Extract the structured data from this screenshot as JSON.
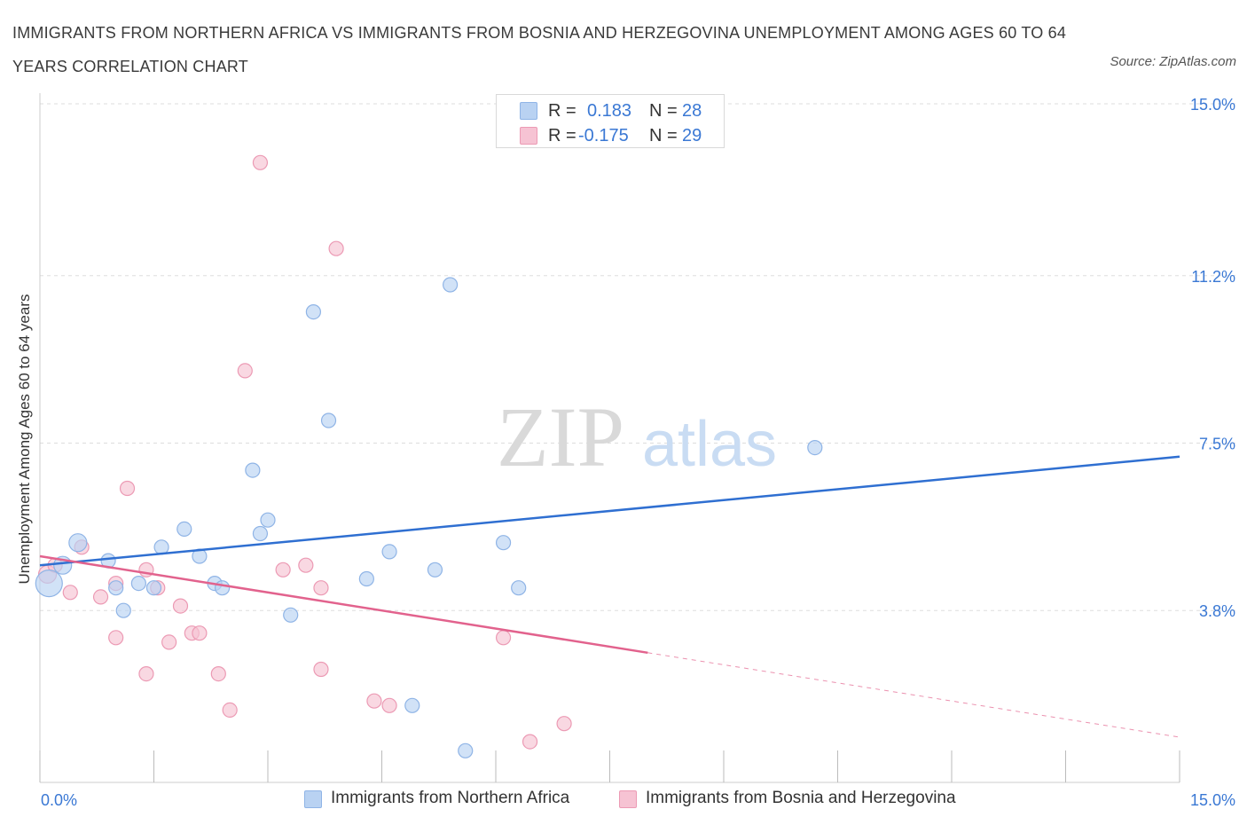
{
  "title": "IMMIGRANTS FROM NORTHERN AFRICA VS IMMIGRANTS FROM BOSNIA AND HERZEGOVINA UNEMPLOYMENT AMONG AGES 60 TO 64 YEARS CORRELATION CHART",
  "source": "Source: ZipAtlas.com",
  "watermark": {
    "zip": "ZIP",
    "atlas": "atlas"
  },
  "legend": {
    "rows": [
      {
        "r_label": "R =",
        "r_value": "0.183",
        "n_label": "N =",
        "n_value": "28"
      },
      {
        "r_label": "R =",
        "r_value": "-0.175",
        "n_label": "N =",
        "n_value": "29"
      }
    ]
  },
  "colors": {
    "blue_fill": "#b9d2f2",
    "blue_stroke": "#8fb4e6",
    "blue_line": "#2f6fd1",
    "pink_fill": "#f6c3d3",
    "pink_stroke": "#ec9ab4",
    "pink_line": "#e2628d",
    "tick_label": "#3a78d4",
    "grid": "#dddddd"
  },
  "chart_data": {
    "type": "scatter",
    "title": "IMMIGRANTS FROM NORTHERN AFRICA VS IMMIGRANTS FROM BOSNIA AND HERZEGOVINA UNEMPLOYMENT AMONG AGES 60 TO 64 YEARS CORRELATION CHART",
    "xlabel": "",
    "ylabel": "Unemployment Among Ages 60 to 64 years",
    "xlim": [
      0,
      15
    ],
    "ylim": [
      0,
      15
    ],
    "x_tick_labels": [
      "0.0%",
      "15.0%"
    ],
    "y_ticks": [
      3.8,
      7.5,
      11.2,
      15.0
    ],
    "y_tick_labels": [
      "3.8%",
      "7.5%",
      "11.2%",
      "15.0%"
    ],
    "grid": true,
    "legend_position": "top-center",
    "series": [
      {
        "name": "Immigrants from Northern Africa",
        "color": "#b9d2f2",
        "r": 0.183,
        "n": 28,
        "trend": {
          "x": [
            0,
            15
          ],
          "y": [
            4.8,
            7.2
          ],
          "dashed_from": null
        },
        "points": [
          {
            "x": 0.12,
            "y": 4.4,
            "s": 3
          },
          {
            "x": 0.3,
            "y": 4.8,
            "s": 2
          },
          {
            "x": 0.5,
            "y": 5.3,
            "s": 2
          },
          {
            "x": 0.9,
            "y": 4.9,
            "s": 1
          },
          {
            "x": 1.1,
            "y": 3.8,
            "s": 1
          },
          {
            "x": 1.3,
            "y": 4.4,
            "s": 1
          },
          {
            "x": 1.5,
            "y": 4.3,
            "s": 1
          },
          {
            "x": 1.6,
            "y": 5.2,
            "s": 1
          },
          {
            "x": 1.9,
            "y": 5.6,
            "s": 1
          },
          {
            "x": 2.1,
            "y": 5.0,
            "s": 1
          },
          {
            "x": 2.3,
            "y": 4.4,
            "s": 1
          },
          {
            "x": 2.4,
            "y": 4.3,
            "s": 1
          },
          {
            "x": 2.8,
            "y": 6.9,
            "s": 1
          },
          {
            "x": 3.0,
            "y": 5.8,
            "s": 1
          },
          {
            "x": 2.9,
            "y": 5.5,
            "s": 1
          },
          {
            "x": 3.3,
            "y": 3.7,
            "s": 1
          },
          {
            "x": 3.6,
            "y": 10.4,
            "s": 1
          },
          {
            "x": 3.8,
            "y": 8.0,
            "s": 1
          },
          {
            "x": 4.3,
            "y": 4.5,
            "s": 1
          },
          {
            "x": 4.6,
            "y": 5.1,
            "s": 1
          },
          {
            "x": 4.9,
            "y": 1.7,
            "s": 1
          },
          {
            "x": 5.2,
            "y": 4.7,
            "s": 1
          },
          {
            "x": 5.4,
            "y": 11.0,
            "s": 1
          },
          {
            "x": 5.6,
            "y": 0.7,
            "s": 1
          },
          {
            "x": 6.1,
            "y": 5.3,
            "s": 1
          },
          {
            "x": 6.3,
            "y": 4.3,
            "s": 1
          },
          {
            "x": 10.2,
            "y": 7.4,
            "s": 1
          },
          {
            "x": 1.0,
            "y": 4.3,
            "s": 1
          }
        ]
      },
      {
        "name": "Immigrants from Bosnia and Herzegovina",
        "color": "#f6c3d3",
        "r": -0.175,
        "n": 29,
        "trend": {
          "x": [
            0,
            15
          ],
          "y": [
            5.0,
            1.0
          ],
          "dashed_from": 8.0
        },
        "points": [
          {
            "x": 0.1,
            "y": 4.6,
            "s": 2
          },
          {
            "x": 0.2,
            "y": 4.8,
            "s": 1
          },
          {
            "x": 0.4,
            "y": 4.2,
            "s": 1
          },
          {
            "x": 0.55,
            "y": 5.2,
            "s": 1
          },
          {
            "x": 0.8,
            "y": 4.1,
            "s": 1
          },
          {
            "x": 1.0,
            "y": 4.4,
            "s": 1
          },
          {
            "x": 1.0,
            "y": 3.2,
            "s": 1
          },
          {
            "x": 1.15,
            "y": 6.5,
            "s": 1
          },
          {
            "x": 1.4,
            "y": 4.7,
            "s": 1
          },
          {
            "x": 1.4,
            "y": 2.4,
            "s": 1
          },
          {
            "x": 1.55,
            "y": 4.3,
            "s": 1
          },
          {
            "x": 1.7,
            "y": 3.1,
            "s": 1
          },
          {
            "x": 1.85,
            "y": 3.9,
            "s": 1
          },
          {
            "x": 2.0,
            "y": 3.3,
            "s": 1
          },
          {
            "x": 2.1,
            "y": 3.3,
            "s": 1
          },
          {
            "x": 2.35,
            "y": 2.4,
            "s": 1
          },
          {
            "x": 2.5,
            "y": 1.6,
            "s": 1
          },
          {
            "x": 2.7,
            "y": 9.1,
            "s": 1
          },
          {
            "x": 2.9,
            "y": 13.7,
            "s": 1
          },
          {
            "x": 3.2,
            "y": 4.7,
            "s": 1
          },
          {
            "x": 3.5,
            "y": 4.8,
            "s": 1
          },
          {
            "x": 3.7,
            "y": 4.3,
            "s": 1
          },
          {
            "x": 3.7,
            "y": 2.5,
            "s": 1
          },
          {
            "x": 3.9,
            "y": 11.8,
            "s": 1
          },
          {
            "x": 4.4,
            "y": 1.8,
            "s": 1
          },
          {
            "x": 4.6,
            "y": 1.7,
            "s": 1
          },
          {
            "x": 6.1,
            "y": 3.2,
            "s": 1
          },
          {
            "x": 6.45,
            "y": 0.9,
            "s": 1
          },
          {
            "x": 6.9,
            "y": 1.3,
            "s": 1
          }
        ]
      }
    ]
  }
}
